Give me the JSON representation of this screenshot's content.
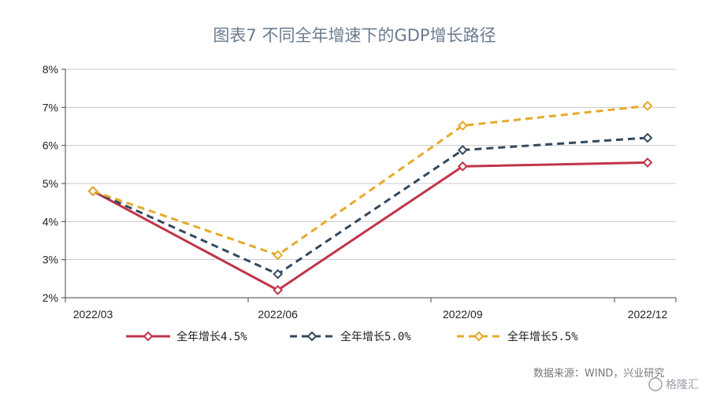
{
  "chart_data": {
    "type": "line",
    "title": "图表7  不同全年增速下的GDP增长路径",
    "categories": [
      "2022/03",
      "2022/06",
      "2022/09",
      "2022/12"
    ],
    "y_ticks": [
      "2%",
      "3%",
      "4%",
      "5%",
      "6%",
      "7%",
      "8%"
    ],
    "ylim": [
      2,
      8
    ],
    "grid": "horizontal",
    "legend_position": "bottom",
    "series": [
      {
        "name": "全年增长4.5%",
        "values": [
          4.8,
          2.2,
          5.45,
          5.55
        ],
        "color": "#c0354b",
        "dash": "solid",
        "marker": "diamond"
      },
      {
        "name": "全年增长5.0%",
        "values": [
          4.8,
          2.62,
          5.88,
          6.2
        ],
        "color": "#34495e",
        "dash": "dashed",
        "marker": "diamond"
      },
      {
        "name": "全年增长5.5%",
        "values": [
          4.8,
          3.12,
          6.52,
          7.04
        ],
        "color": "#e6a92b",
        "dash": "dashed",
        "marker": "diamond"
      }
    ]
  },
  "source": "数据来源：WIND，兴业研究",
  "watermark": "格隆汇"
}
